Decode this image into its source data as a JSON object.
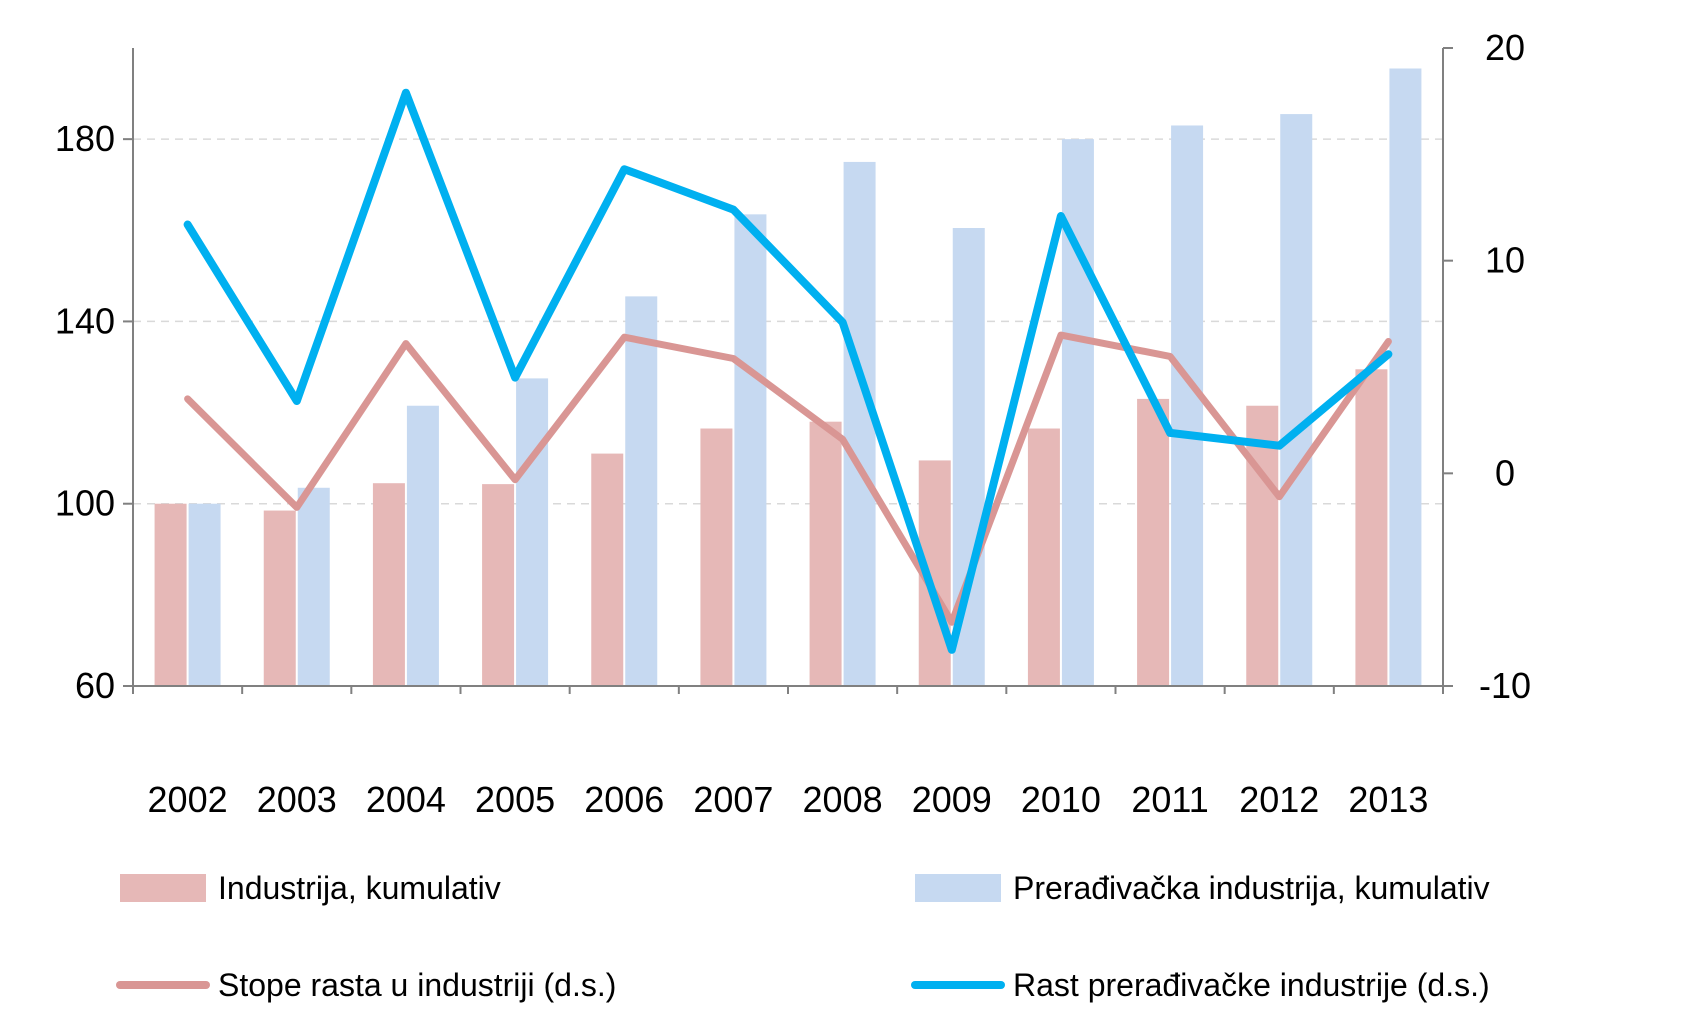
{
  "chart_data": {
    "type": "bar",
    "title": "",
    "xlabel": "",
    "ylabel": "",
    "categories": [
      "2002",
      "2003",
      "2004",
      "2005",
      "2006",
      "2007",
      "2008",
      "2009",
      "2010",
      "2011",
      "2012",
      "2013"
    ],
    "ylim": [
      60,
      200
    ],
    "y2lim": [
      -10,
      20
    ],
    "yticks": [
      60,
      100,
      140,
      180
    ],
    "y2ticks": [
      -10,
      0,
      10,
      20
    ],
    "grid": true,
    "legend_position": "bottom",
    "colors": {
      "industrija_bar": "#e6b8b7",
      "preradjivacka_bar": "#c6d9f1",
      "industrija_line": "#d99694",
      "preradjivacka_line": "#00b0f0",
      "axis": "#808080",
      "grid": "#d9d9d9"
    },
    "bar_series": [
      {
        "name": "Industrija, kumulativ",
        "axis": "left",
        "color": "#e6b8b7",
        "values": [
          100,
          98.5,
          104.5,
          104.3,
          111,
          116.5,
          118,
          109.5,
          116.5,
          123,
          121.5,
          129.5
        ]
      },
      {
        "name": "Prerađivačka industrija, kumulativ",
        "axis": "left",
        "color": "#c6d9f1",
        "values": [
          100,
          103.5,
          121.5,
          127.5,
          145.5,
          163.5,
          175,
          160.5,
          180,
          183,
          185.5,
          195.5
        ]
      }
    ],
    "line_series": [
      {
        "name": "Stope rasta u industriji (d.s.)",
        "axis": "right",
        "color": "#d99694",
        "values": [
          3.5,
          -1.6,
          6.1,
          -0.3,
          6.4,
          5.4,
          1.6,
          -7.0,
          6.5,
          5.5,
          -1.1,
          6.2
        ]
      },
      {
        "name": "Rast prerađivačke industrije (d.s.)",
        "axis": "right",
        "color": "#00b0f0",
        "values": [
          11.7,
          3.4,
          17.9,
          4.5,
          14.3,
          12.4,
          7.1,
          -8.3,
          12.1,
          1.9,
          1.3,
          5.6
        ]
      }
    ]
  }
}
